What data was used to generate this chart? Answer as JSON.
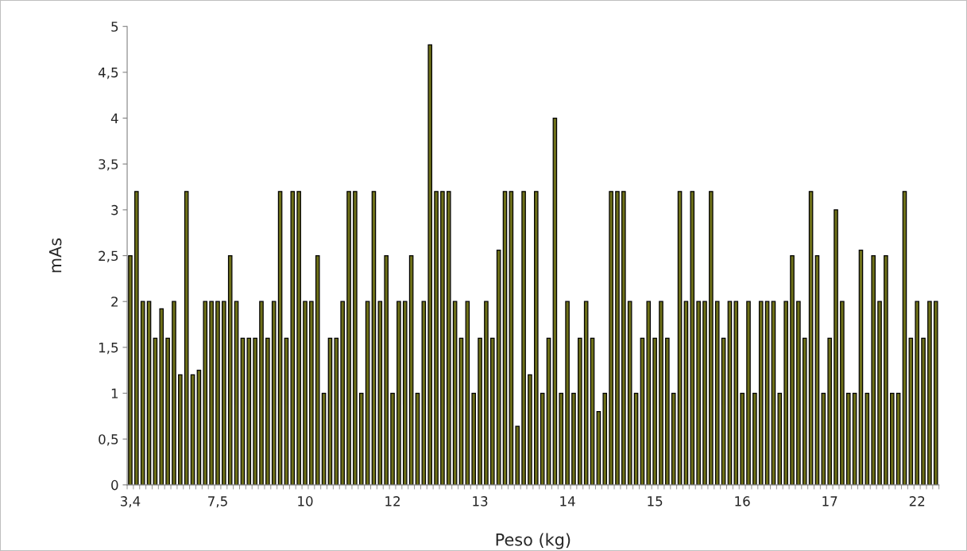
{
  "chart_data": {
    "type": "bar",
    "xlabel": "Peso (kg)",
    "ylabel": "mAs",
    "categories": [
      "3,4",
      null,
      null,
      null,
      null,
      null,
      null,
      null,
      null,
      null,
      null,
      null,
      null,
      null,
      "7,5",
      null,
      null,
      null,
      null,
      null,
      null,
      null,
      null,
      null,
      null,
      null,
      null,
      null,
      "10",
      null,
      null,
      null,
      null,
      null,
      null,
      null,
      null,
      null,
      null,
      null,
      null,
      null,
      "12",
      null,
      null,
      null,
      null,
      null,
      null,
      null,
      null,
      null,
      null,
      null,
      null,
      null,
      "13",
      null,
      null,
      null,
      null,
      null,
      null,
      null,
      null,
      null,
      null,
      null,
      null,
      null,
      "14",
      null,
      null,
      null,
      null,
      null,
      null,
      null,
      null,
      null,
      null,
      null,
      null,
      null,
      "15",
      null,
      null,
      null,
      null,
      null,
      null,
      null,
      null,
      null,
      null,
      null,
      null,
      null,
      "16",
      null,
      null,
      null,
      null,
      null,
      null,
      null,
      null,
      null,
      null,
      null,
      null,
      null,
      "17",
      null,
      null,
      null,
      null,
      null,
      null,
      null,
      null,
      null,
      null,
      null,
      null,
      null,
      "22",
      null,
      null,
      null
    ],
    "values": [
      2.5,
      3.2,
      2,
      2,
      1.6,
      1.92,
      1.6,
      2,
      1.2,
      3.2,
      1.2,
      1.25,
      2,
      2,
      2,
      2,
      2.5,
      2,
      1.6,
      1.6,
      1.6,
      2,
      1.6,
      2,
      3.2,
      1.6,
      3.2,
      3.2,
      2,
      2,
      2.5,
      1,
      1.6,
      1.6,
      2,
      3.2,
      3.2,
      1,
      2,
      3.2,
      2,
      2.5,
      1,
      2,
      2,
      2.5,
      1,
      2,
      4.8,
      3.2,
      3.2,
      3.2,
      2,
      1.6,
      2,
      1,
      1.6,
      2,
      1.6,
      2.56,
      3.2,
      3.2,
      0.64,
      3.2,
      1.2,
      3.2,
      1,
      1.6,
      4,
      1,
      2,
      1,
      1.6,
      2,
      1.6,
      0.8,
      1,
      3.2,
      3.2,
      3.2,
      2,
      1,
      1.6,
      2,
      1.6,
      2,
      1.6,
      1,
      3.2,
      2,
      3.2,
      2,
      2,
      3.2,
      2,
      1.6,
      2,
      2,
      1,
      2,
      1,
      2,
      2,
      2,
      1,
      2,
      2.5,
      2,
      1.6,
      3.2,
      2.5,
      1,
      1.6,
      3,
      2,
      1,
      1,
      2.56,
      1,
      2.5,
      2,
      2.5,
      1,
      1,
      3.2,
      1.6,
      2,
      1.6,
      2,
      2
    ],
    "color": "#6e7019",
    "ylim": [
      0,
      5
    ],
    "yticks": [
      0,
      {
        "value": 0.5,
        "label": "0,5"
      },
      1,
      {
        "value": 1.5,
        "label": "1,5"
      },
      2,
      {
        "value": 2.5,
        "label": "2,5"
      },
      3,
      {
        "value": 3.5,
        "label": "3,5"
      },
      4,
      {
        "value": 4.5,
        "label": "4,5"
      },
      5
    ],
    "grid": false,
    "legend": false
  }
}
